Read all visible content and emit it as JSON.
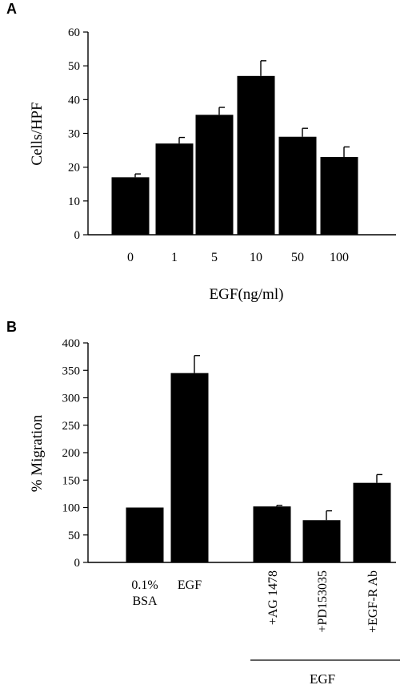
{
  "chart_data": [
    {
      "type": "bar",
      "panel_label": "A",
      "categories": [
        "0",
        "1",
        "5",
        "10",
        "50",
        "100"
      ],
      "values": [
        17,
        27,
        35.5,
        47,
        29,
        23
      ],
      "errors": [
        1,
        1.8,
        2.2,
        4.5,
        2.5,
        3
      ],
      "ylabel": "Cells/HPF",
      "xlabel": "EGF(ng/ml)",
      "ylim": [
        0,
        60
      ],
      "yticks": [
        0,
        10,
        20,
        30,
        40,
        50,
        60
      ],
      "bar_color": "#000000"
    },
    {
      "type": "bar",
      "panel_label": "B",
      "categories": [
        "0.1%\nBSA",
        "EGF",
        "+AG 1478",
        "+PD153035",
        "+EGF-R Ab"
      ],
      "values": [
        100,
        345,
        102,
        77,
        145
      ],
      "errors": [
        0,
        32,
        2,
        17,
        15
      ],
      "ylabel": "% Migration",
      "ylim": [
        0,
        400
      ],
      "yticks": [
        0,
        50,
        100,
        150,
        200,
        250,
        300,
        350,
        400
      ],
      "group_label": "EGF",
      "bar_color": "#000000"
    }
  ]
}
